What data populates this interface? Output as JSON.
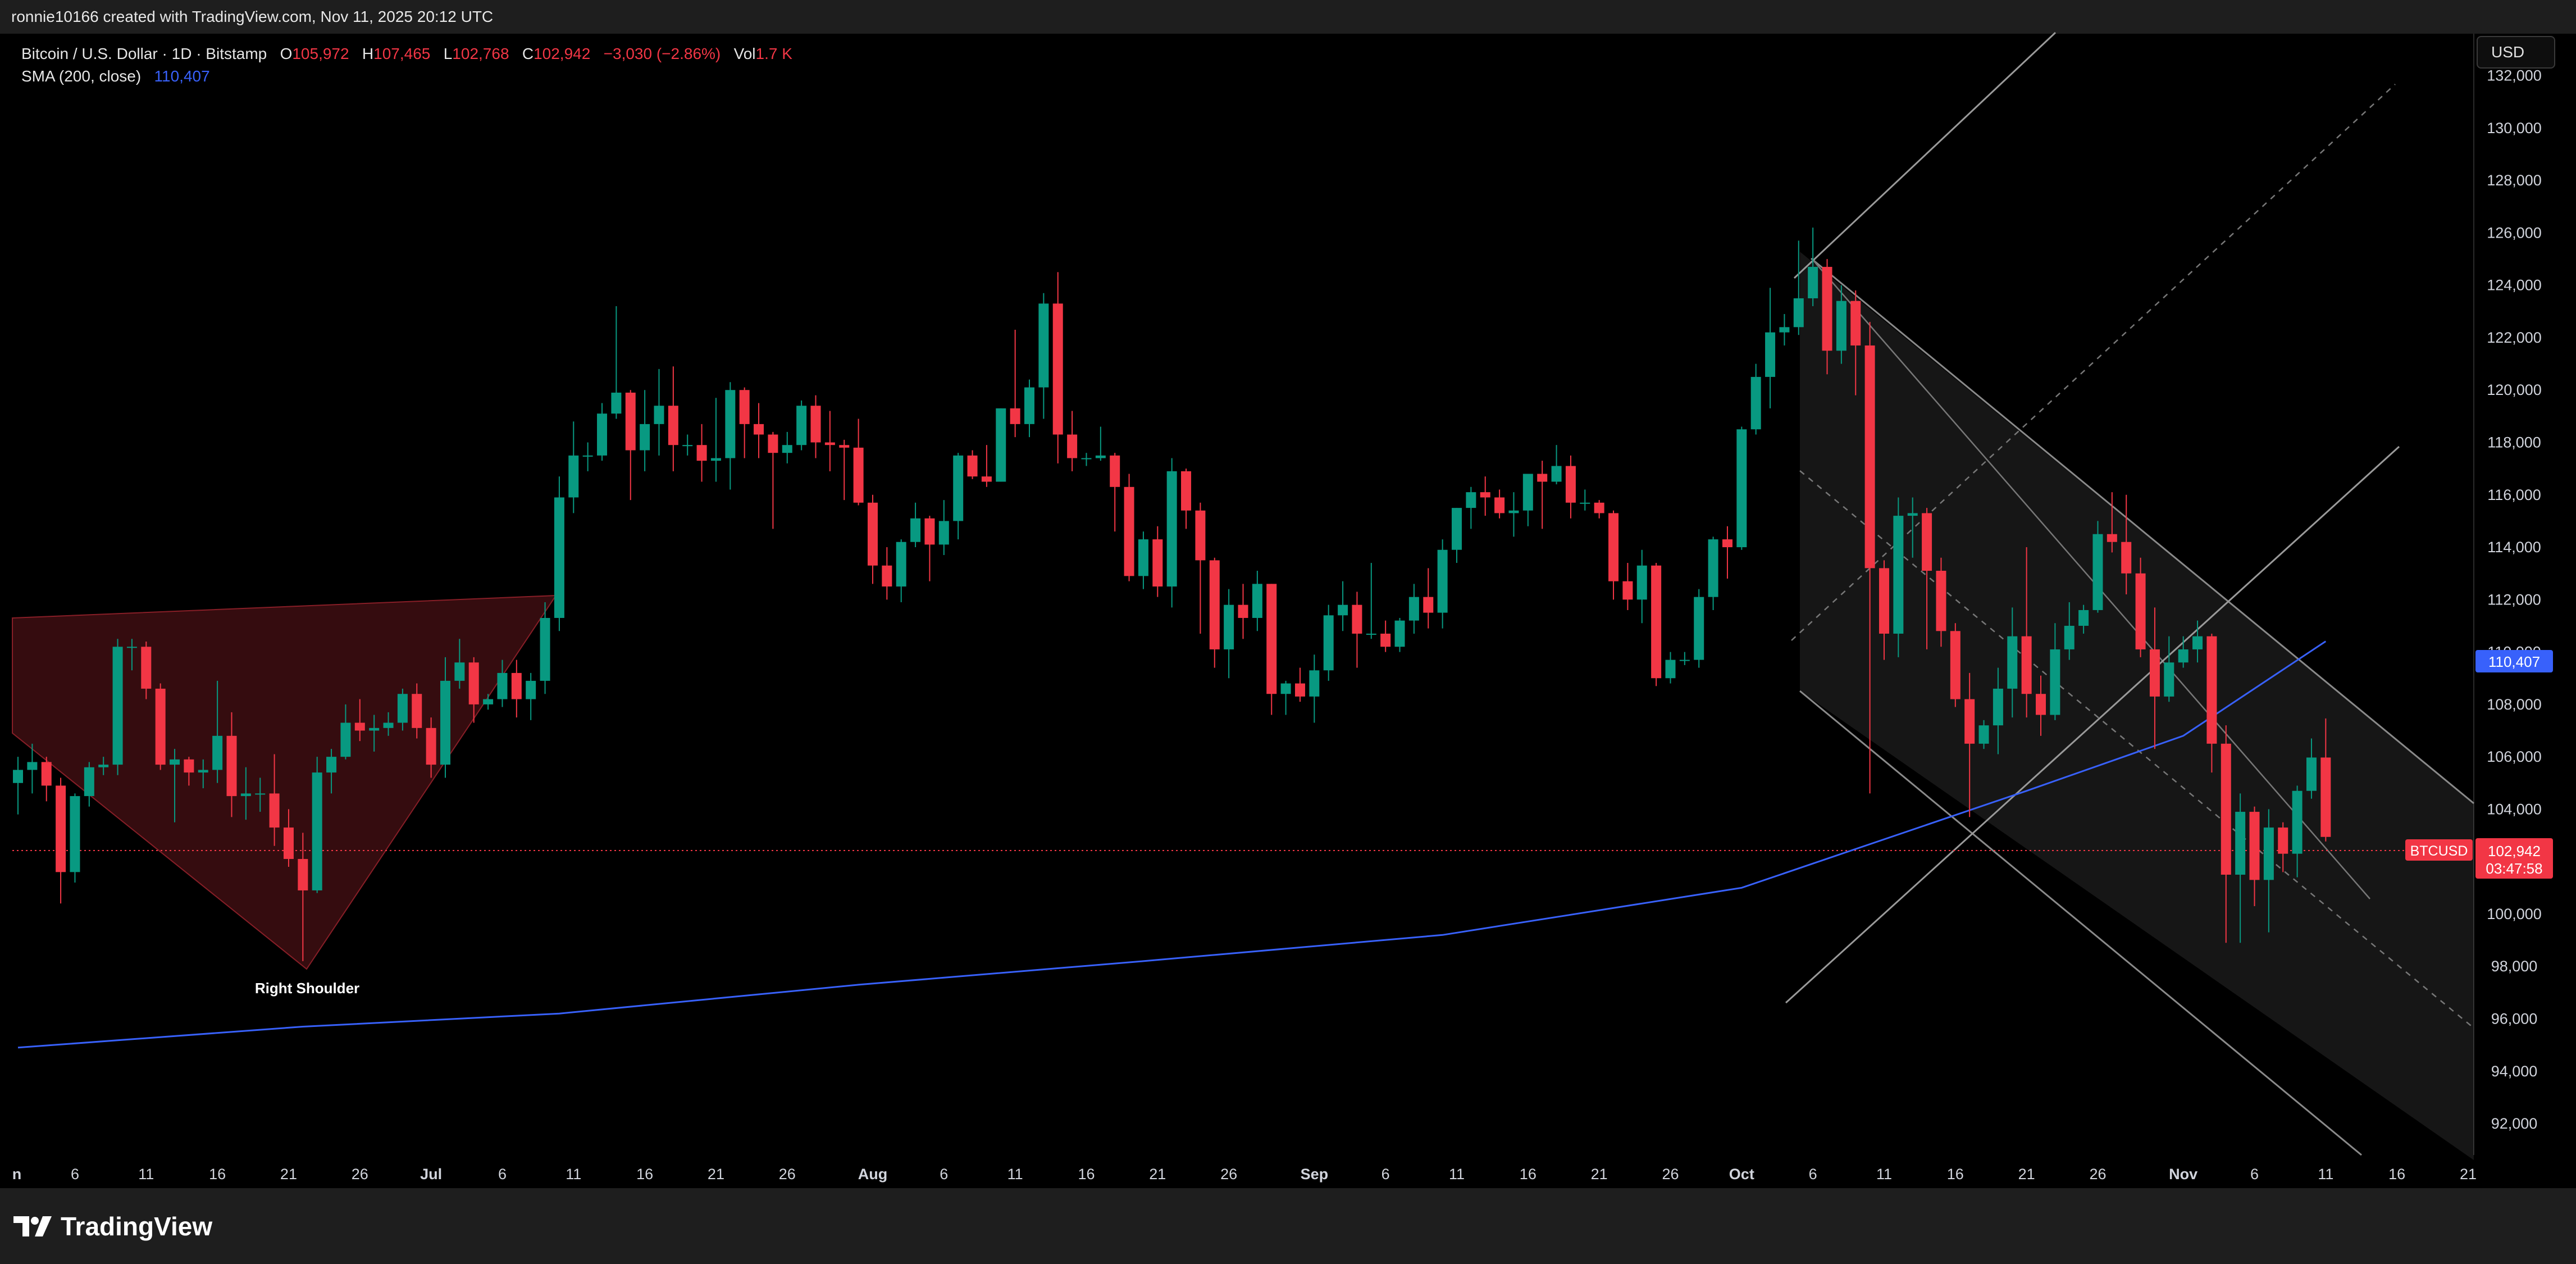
{
  "credit": "ronnie10166 created with TradingView.com, Nov 11, 2025 20:12 UTC",
  "brand": {
    "name": "TradingView",
    "icon": "tradingview-logo-icon"
  },
  "currency_button": "USD",
  "legend": {
    "symbol": "Bitcoin / U.S. Dollar · 1D · Bitstamp",
    "o_label": "O",
    "o_value": "105,972",
    "h_label": "H",
    "h_value": "107,465",
    "l_label": "L",
    "l_value": "102,768",
    "c_label": "C",
    "c_value": "102,942",
    "change": "−3,030 (−2.86%)",
    "vol_label": "Vol",
    "vol_value": "1.7 K",
    "sma_label": "SMA (200, close)",
    "sma_value": "110,407"
  },
  "colors": {
    "up": "#089981",
    "down": "#f23645",
    "sma": "#3861fb",
    "background": "#000000"
  },
  "chart_data": {
    "type": "candlestick",
    "y_ticks": [
      "132,000",
      "130,000",
      "128,000",
      "126,000",
      "124,000",
      "122,000",
      "120,000",
      "118,000",
      "116,000",
      "114,000",
      "112,000",
      "110,000",
      "108,000",
      "106,000",
      "104,000",
      "100,000",
      "98,000",
      "96,000",
      "94,000",
      "92,000"
    ],
    "x_ticks": [
      "n",
      "6",
      "11",
      "16",
      "21",
      "26",
      "Jul",
      "6",
      "11",
      "16",
      "21",
      "26",
      "Aug",
      "6",
      "11",
      "16",
      "21",
      "26",
      "Sep",
      "6",
      "11",
      "16",
      "21",
      "26",
      "Oct",
      "6",
      "11",
      "16",
      "21",
      "26",
      "Nov",
      "6",
      "11",
      "16",
      "21"
    ],
    "ylim": [
      90800,
      133600
    ],
    "x_range": {
      "start": "2025-06-02",
      "end": "2025-11-21"
    },
    "grid": false,
    "annotation": "Right Shoulder",
    "price_label": {
      "symbol": "BTCUSD",
      "price": "102,942",
      "countdown": "03:47:58"
    },
    "sma_label": "110,407",
    "ohlc": [
      [
        "2025-06-02",
        105000,
        106000,
        103800,
        105500
      ],
      [
        "2025-06-03",
        105500,
        106500,
        104600,
        105800
      ],
      [
        "2025-06-04",
        105800,
        106000,
        104300,
        104900
      ],
      [
        "2025-06-05",
        104900,
        105200,
        100400,
        101600
      ],
      [
        "2025-06-06",
        101600,
        104600,
        101200,
        104500
      ],
      [
        "2025-06-07",
        104500,
        105800,
        104100,
        105600
      ],
      [
        "2025-06-08",
        105600,
        106000,
        105300,
        105700
      ],
      [
        "2025-06-09",
        105700,
        110500,
        105300,
        110200
      ],
      [
        "2025-06-10",
        110200,
        110500,
        109300,
        110200
      ],
      [
        "2025-06-11",
        110200,
        110400,
        108200,
        108600
      ],
      [
        "2025-06-12",
        108600,
        108800,
        105500,
        105700
      ],
      [
        "2025-06-13",
        105700,
        106300,
        103500,
        105900
      ],
      [
        "2025-06-14",
        105900,
        106000,
        104900,
        105400
      ],
      [
        "2025-06-15",
        105400,
        105900,
        104800,
        105500
      ],
      [
        "2025-06-16",
        105500,
        108900,
        105000,
        106800
      ],
      [
        "2025-06-17",
        106800,
        107700,
        103700,
        104500
      ],
      [
        "2025-06-18",
        104500,
        105600,
        103600,
        104600
      ],
      [
        "2025-06-19",
        104600,
        105200,
        103900,
        104600
      ],
      [
        "2025-06-20",
        104600,
        106100,
        102600,
        103300
      ],
      [
        "2025-06-21",
        103300,
        104000,
        101800,
        102100
      ],
      [
        "2025-06-22",
        102100,
        103100,
        98200,
        100900
      ],
      [
        "2025-06-23",
        100900,
        106000,
        100800,
        105400
      ],
      [
        "2025-06-24",
        105400,
        106300,
        104600,
        106000
      ],
      [
        "2025-06-25",
        106000,
        108000,
        105900,
        107300
      ],
      [
        "2025-06-26",
        107300,
        108200,
        106600,
        107000
      ],
      [
        "2025-06-27",
        107000,
        107600,
        106200,
        107100
      ],
      [
        "2025-06-28",
        107100,
        107700,
        106800,
        107300
      ],
      [
        "2025-06-29",
        107300,
        108600,
        107000,
        108400
      ],
      [
        "2025-06-30",
        108400,
        108800,
        106700,
        107100
      ],
      [
        "2025-07-01",
        107100,
        107500,
        105200,
        105700
      ],
      [
        "2025-07-02",
        105700,
        109800,
        105200,
        108900
      ],
      [
        "2025-07-03",
        108900,
        110500,
        108600,
        109600
      ],
      [
        "2025-07-04",
        109600,
        109800,
        107300,
        108000
      ],
      [
        "2025-07-05",
        108000,
        108400,
        107800,
        108200
      ],
      [
        "2025-07-06",
        108200,
        109700,
        107900,
        109200
      ],
      [
        "2025-07-07",
        109200,
        109700,
        107500,
        108200
      ],
      [
        "2025-07-08",
        108200,
        109200,
        107400,
        108900
      ],
      [
        "2025-07-09",
        108900,
        111900,
        108400,
        111300
      ],
      [
        "2025-07-10",
        111300,
        116700,
        110800,
        115900
      ],
      [
        "2025-07-11",
        115900,
        118800,
        115300,
        117500
      ],
      [
        "2025-07-12",
        117500,
        118000,
        116900,
        117500
      ],
      [
        "2025-07-13",
        117500,
        119500,
        117300,
        119100
      ],
      [
        "2025-07-14",
        119100,
        123200,
        118900,
        119900
      ],
      [
        "2025-07-15",
        119900,
        120000,
        115800,
        117700
      ],
      [
        "2025-07-16",
        117700,
        120000,
        116900,
        118700
      ],
      [
        "2025-07-17",
        118700,
        120800,
        117500,
        119400
      ],
      [
        "2025-07-18",
        119400,
        120900,
        116900,
        117900
      ],
      [
        "2025-07-19",
        117900,
        118300,
        117500,
        117900
      ],
      [
        "2025-07-20",
        117900,
        118700,
        116500,
        117300
      ],
      [
        "2025-07-21",
        117300,
        119700,
        116500,
        117400
      ],
      [
        "2025-07-22",
        117400,
        120300,
        116200,
        120000
      ],
      [
        "2025-07-23",
        120000,
        120100,
        117400,
        118700
      ],
      [
        "2025-07-24",
        118700,
        119500,
        117400,
        118300
      ],
      [
        "2025-07-25",
        118300,
        118400,
        114700,
        117600
      ],
      [
        "2025-07-26",
        117600,
        118400,
        117200,
        117900
      ],
      [
        "2025-07-27",
        117900,
        119600,
        117700,
        119400
      ],
      [
        "2025-07-28",
        119400,
        119800,
        117400,
        118000
      ],
      [
        "2025-07-29",
        118000,
        119200,
        116900,
        117900
      ],
      [
        "2025-07-30",
        117900,
        118100,
        115800,
        117800
      ],
      [
        "2025-07-31",
        117800,
        118900,
        115600,
        115700
      ],
      [
        "2025-08-01",
        115700,
        116000,
        112600,
        113300
      ],
      [
        "2025-08-02",
        113300,
        114000,
        112000,
        112500
      ],
      [
        "2025-08-03",
        112500,
        114300,
        111900,
        114200
      ],
      [
        "2025-08-04",
        114200,
        115700,
        114000,
        115100
      ],
      [
        "2025-08-05",
        115100,
        115200,
        112700,
        114100
      ],
      [
        "2025-08-06",
        114100,
        115800,
        113700,
        115000
      ],
      [
        "2025-08-07",
        115000,
        117600,
        114300,
        117500
      ],
      [
        "2025-08-08",
        117500,
        117700,
        116600,
        116700
      ],
      [
        "2025-08-09",
        116700,
        117900,
        116300,
        116500
      ],
      [
        "2025-08-10",
        116500,
        119300,
        116500,
        119300
      ],
      [
        "2025-08-11",
        119300,
        122300,
        118200,
        118700
      ],
      [
        "2025-08-12",
        118700,
        120400,
        118200,
        120100
      ],
      [
        "2025-08-13",
        120100,
        123700,
        118900,
        123300
      ],
      [
        "2025-08-14",
        123300,
        124500,
        117200,
        118300
      ],
      [
        "2025-08-15",
        118300,
        119200,
        116900,
        117400
      ],
      [
        "2025-08-16",
        117400,
        117600,
        117100,
        117400
      ],
      [
        "2025-08-17",
        117400,
        118600,
        117300,
        117500
      ],
      [
        "2025-08-18",
        117500,
        117600,
        114600,
        116300
      ],
      [
        "2025-08-19",
        116300,
        116800,
        112700,
        112900
      ],
      [
        "2025-08-20",
        112900,
        114600,
        112400,
        114300
      ],
      [
        "2025-08-21",
        114300,
        114800,
        112100,
        112500
      ],
      [
        "2025-08-22",
        112500,
        117400,
        111700,
        116900
      ],
      [
        "2025-08-23",
        116900,
        117000,
        114700,
        115400
      ],
      [
        "2025-08-24",
        115400,
        115700,
        110700,
        113500
      ],
      [
        "2025-08-25",
        113500,
        113600,
        109400,
        110100
      ],
      [
        "2025-08-26",
        110100,
        112400,
        109000,
        111800
      ],
      [
        "2025-08-27",
        111800,
        112600,
        110500,
        111300
      ],
      [
        "2025-08-28",
        111300,
        113100,
        110800,
        112600
      ],
      [
        "2025-08-29",
        112600,
        112600,
        107600,
        108400
      ],
      [
        "2025-08-30",
        108400,
        108900,
        107600,
        108800
      ],
      [
        "2025-08-31",
        108800,
        109400,
        108100,
        108300
      ],
      [
        "2025-09-01",
        108300,
        109900,
        107300,
        109300
      ],
      [
        "2025-09-02",
        109300,
        111800,
        108900,
        111400
      ],
      [
        "2025-09-03",
        111400,
        112700,
        110800,
        111800
      ],
      [
        "2025-09-04",
        111800,
        112300,
        109400,
        110700
      ],
      [
        "2025-09-05",
        110700,
        113400,
        110500,
        110700
      ],
      [
        "2025-09-06",
        110700,
        111200,
        110000,
        110200
      ],
      [
        "2025-09-07",
        110200,
        111300,
        110000,
        111200
      ],
      [
        "2025-09-08",
        111200,
        112600,
        110700,
        112100
      ],
      [
        "2025-09-09",
        112100,
        113200,
        110900,
        111500
      ],
      [
        "2025-09-10",
        111500,
        114300,
        110900,
        113900
      ],
      [
        "2025-09-11",
        113900,
        115500,
        113400,
        115500
      ],
      [
        "2025-09-12",
        115500,
        116300,
        114700,
        116100
      ],
      [
        "2025-09-13",
        116100,
        116700,
        115200,
        115900
      ],
      [
        "2025-09-14",
        115900,
        116200,
        115100,
        115300
      ],
      [
        "2025-09-15",
        115300,
        116100,
        114400,
        115400
      ],
      [
        "2025-09-16",
        115400,
        116800,
        114800,
        116800
      ],
      [
        "2025-09-17",
        116800,
        117300,
        114700,
        116500
      ],
      [
        "2025-09-18",
        116500,
        117900,
        116400,
        117100
      ],
      [
        "2025-09-19",
        117100,
        117500,
        115100,
        115700
      ],
      [
        "2025-09-20",
        115700,
        116200,
        115400,
        115700
      ],
      [
        "2025-09-21",
        115700,
        115800,
        115100,
        115300
      ],
      [
        "2025-09-22",
        115300,
        115400,
        112000,
        112700
      ],
      [
        "2025-09-23",
        112700,
        113400,
        111600,
        112000
      ],
      [
        "2025-09-24",
        112000,
        113900,
        111100,
        113300
      ],
      [
        "2025-09-25",
        113300,
        113400,
        108700,
        109000
      ],
      [
        "2025-09-26",
        109000,
        110000,
        108800,
        109700
      ],
      [
        "2025-09-27",
        109700,
        110000,
        109500,
        109700
      ],
      [
        "2025-09-28",
        109700,
        112400,
        109400,
        112100
      ],
      [
        "2025-09-29",
        112100,
        114400,
        111600,
        114300
      ],
      [
        "2025-09-30",
        114300,
        114800,
        112800,
        114000
      ],
      [
        "2025-10-01",
        114000,
        118600,
        113900,
        118500
      ],
      [
        "2025-10-02",
        118500,
        121000,
        118300,
        120500
      ],
      [
        "2025-10-03",
        120500,
        123900,
        119300,
        122200
      ],
      [
        "2025-10-04",
        122200,
        122900,
        121700,
        122400
      ],
      [
        "2025-10-05",
        122400,
        125700,
        122100,
        123500
      ],
      [
        "2025-10-06",
        123500,
        126200,
        123200,
        124700
      ],
      [
        "2025-10-07",
        124700,
        125000,
        120600,
        121500
      ],
      [
        "2025-10-08",
        121500,
        124000,
        121000,
        123400
      ],
      [
        "2025-10-09",
        123400,
        123800,
        119800,
        121700
      ],
      [
        "2025-10-10",
        121700,
        122600,
        104600,
        113200
      ],
      [
        "2025-10-11",
        113200,
        113500,
        109700,
        110700
      ],
      [
        "2025-10-12",
        110700,
        115900,
        109800,
        115200
      ],
      [
        "2025-10-13",
        115200,
        115900,
        113600,
        115300
      ],
      [
        "2025-10-14",
        115300,
        115500,
        110100,
        113100
      ],
      [
        "2025-10-15",
        113100,
        113600,
        110200,
        110800
      ],
      [
        "2025-10-16",
        110800,
        111100,
        107900,
        108200
      ],
      [
        "2025-10-17",
        108200,
        109200,
        103700,
        106500
      ],
      [
        "2025-10-18",
        106500,
        107400,
        106300,
        107200
      ],
      [
        "2025-10-19",
        107200,
        109400,
        106100,
        108600
      ],
      [
        "2025-10-20",
        108600,
        111700,
        107500,
        110600
      ],
      [
        "2025-10-21",
        110600,
        114000,
        107500,
        108400
      ],
      [
        "2025-10-22",
        108400,
        109100,
        106800,
        107600
      ],
      [
        "2025-10-23",
        107600,
        111100,
        107400,
        110100
      ],
      [
        "2025-10-24",
        110100,
        111900,
        109700,
        111000
      ],
      [
        "2025-10-25",
        111000,
        111800,
        110700,
        111600
      ],
      [
        "2025-10-26",
        111600,
        115000,
        111500,
        114500
      ],
      [
        "2025-10-27",
        114500,
        116100,
        113800,
        114200
      ],
      [
        "2025-10-28",
        114200,
        116000,
        112200,
        113000
      ],
      [
        "2025-10-29",
        113000,
        113600,
        109800,
        110100
      ],
      [
        "2025-10-30",
        110100,
        111700,
        106300,
        108300
      ],
      [
        "2025-10-31",
        108300,
        110600,
        108100,
        109600
      ],
      [
        "2025-11-01",
        109600,
        110600,
        109400,
        110100
      ],
      [
        "2025-11-02",
        110100,
        111200,
        109600,
        110600
      ],
      [
        "2025-11-03",
        110600,
        110700,
        105400,
        106500
      ],
      [
        "2025-11-04",
        106500,
        107200,
        98900,
        101500
      ],
      [
        "2025-11-05",
        101500,
        104600,
        98900,
        103900
      ],
      [
        "2025-11-06",
        103900,
        104100,
        100300,
        101300
      ],
      [
        "2025-11-07",
        101300,
        104000,
        99300,
        103300
      ],
      [
        "2025-11-08",
        103300,
        103500,
        101600,
        102300
      ],
      [
        "2025-11-09",
        102300,
        104900,
        101400,
        104700
      ],
      [
        "2025-11-10",
        104700,
        106700,
        104400,
        105972
      ],
      [
        "2025-11-11",
        105972,
        107465,
        102768,
        102942
      ]
    ],
    "sma": [
      [
        "2025-06-02",
        94900
      ],
      [
        "2025-06-22",
        95700
      ],
      [
        "2025-07-10",
        96200
      ],
      [
        "2025-07-31",
        97300
      ],
      [
        "2025-08-20",
        98200
      ],
      [
        "2025-09-10",
        99200
      ],
      [
        "2025-10-01",
        101000
      ],
      [
        "2025-10-21",
        104700
      ],
      [
        "2025-11-01",
        106800
      ],
      [
        "2025-11-11",
        110407
      ]
    ]
  }
}
